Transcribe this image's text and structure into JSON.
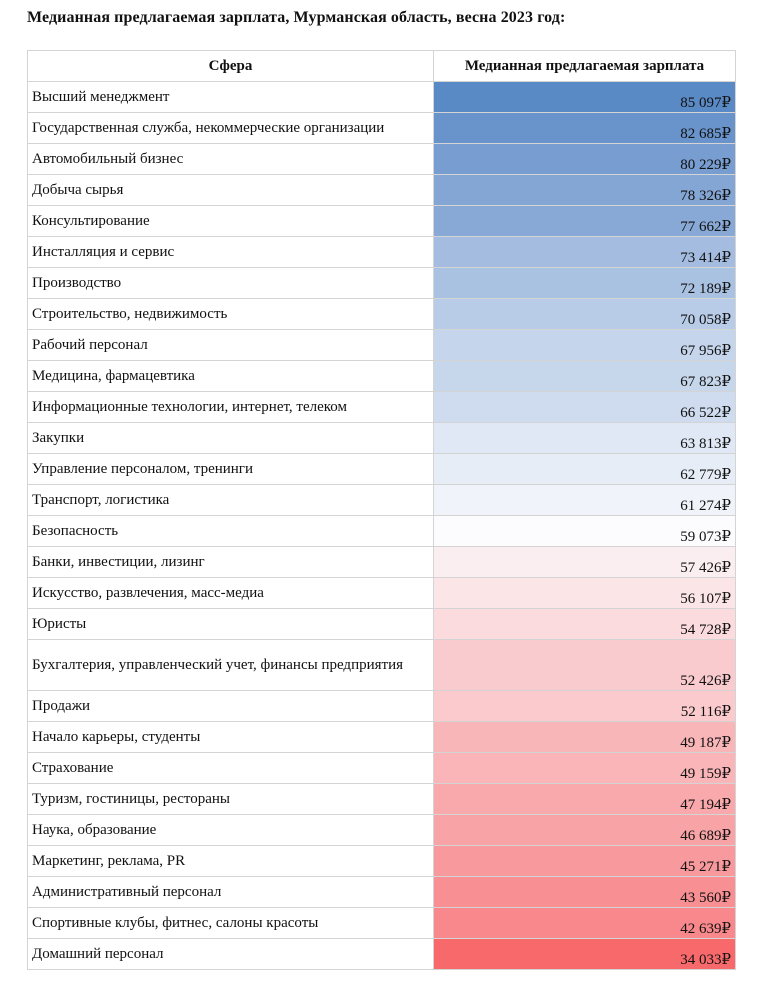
{
  "title": "Медианная предлагаемая зарплата, Мурманская область, весна 2023 год:",
  "table": {
    "headers": {
      "sector": "Сфера",
      "salary": "Медианная предлагаемая зарплата"
    },
    "currency": "₽",
    "rows": [
      {
        "sector": "Высший менеджмент",
        "salary": "85 097₽",
        "color": "#5a8ac6"
      },
      {
        "sector": "Государственная служба, некоммерческие организации",
        "salary": "82 685₽",
        "color": "#6993cb"
      },
      {
        "sector": "Автомобильный бизнес",
        "salary": "80 229₽",
        "color": "#789dd0"
      },
      {
        "sector": "Добыча сырья",
        "salary": "78 326₽",
        "color": "#84a6d4"
      },
      {
        "sector": "Консультирование",
        "salary": "77 662₽",
        "color": "#88a9d6"
      },
      {
        "sector": "Инсталляция и сервис",
        "salary": "73 414₽",
        "color": "#a3bcdf"
      },
      {
        "sector": "Производство",
        "salary": "72 189₽",
        "color": "#aac2e2"
      },
      {
        "sector": "Строительство, недвижимость",
        "salary": "70 058₽",
        "color": "#b8cce7"
      },
      {
        "sector": "Рабочий персонал",
        "salary": "67 956₽",
        "color": "#c5d6ec"
      },
      {
        "sector": "Медицина, фармацевтика",
        "salary": "67 823₽",
        "color": "#c6d7ec"
      },
      {
        "sector": "Информационные технологии, интернет, телеком",
        "salary": "66 522₽",
        "color": "#cfdcef"
      },
      {
        "sector": "Закупки",
        "salary": "63 813₽",
        "color": "#e0e8f5"
      },
      {
        "sector": "Управление персоналом, тренинги",
        "salary": "62 779₽",
        "color": "#e6edf7"
      },
      {
        "sector": "Транспорт, логистика",
        "salary": "61 274₽",
        "color": "#f0f4fa"
      },
      {
        "sector": "Безопасность",
        "salary": "59 073₽",
        "color": "#fcfcff"
      },
      {
        "sector": "Банки, инвестиции, лизинг",
        "salary": "57 426₽",
        "color": "#fbeef0"
      },
      {
        "sector": "Искусство, развлечения, масс-медиа",
        "salary": "56 107₽",
        "color": "#fbe5e7"
      },
      {
        "sector": "Юристы",
        "salary": "54 728₽",
        "color": "#fbdbdd"
      },
      {
        "sector": "Бухгалтерия, управленческий учет, финансы предприятия",
        "salary": "52 426₽",
        "color": "#facbce"
      },
      {
        "sector": "Продажи",
        "salary": "52 116₽",
        "color": "#facacd"
      },
      {
        "sector": "Начало карьеры, студенты",
        "salary": "49 187₽",
        "color": "#f9b6b9"
      },
      {
        "sector": "Страхование",
        "salary": "49 159₽",
        "color": "#f9b5b8"
      },
      {
        "sector": "Туризм, гостиницы, рестораны",
        "salary": "47 194₽",
        "color": "#f9a8ab"
      },
      {
        "sector": "Наука, образование",
        "salary": "46 689₽",
        "color": "#f8a4a7"
      },
      {
        "sector": "Маркетинг, реклама, PR",
        "salary": "45 271₽",
        "color": "#f89a9d"
      },
      {
        "sector": "Административный персонал",
        "salary": "43 560₽",
        "color": "#f88f92"
      },
      {
        "sector": "Спортивные клубы, фитнес, салоны красоты",
        "salary": "42 639₽",
        "color": "#f8888b"
      },
      {
        "sector": "Домашний персонал",
        "salary": "34 033₽",
        "color": "#f8696b"
      }
    ]
  }
}
